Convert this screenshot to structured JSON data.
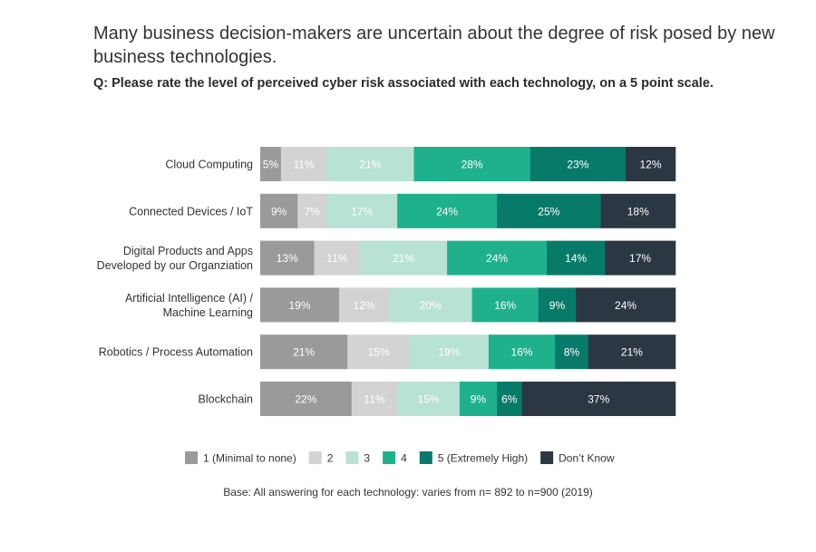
{
  "header": {
    "title": "Many business decision-makers are uncertain about the degree of risk posed by new business technologies.",
    "question": "Q: Please rate the level of perceived cyber risk associated with each technology, on a 5 point scale."
  },
  "footnote": "Base: All answering for each technology: varies from n= 892 to n=900 (2019)",
  "chart_data": {
    "type": "bar",
    "orientation": "horizontal",
    "stacked": true,
    "normalized": true,
    "categories": [
      [
        "Cloud Computing"
      ],
      [
        "Connected Devices / IoT"
      ],
      [
        "Digital Products and Apps",
        "Developed by our Organziation"
      ],
      [
        "Artificial Intelligence (AI) /",
        "Machine Learning"
      ],
      [
        "Robotics / Process Automation"
      ],
      [
        "Blockchain"
      ]
    ],
    "series": [
      {
        "name": "1 (Minimal to none)",
        "color": "#9a9a9a",
        "label_color": "#ffffff",
        "values": [
          5,
          9,
          13,
          19,
          21,
          22
        ]
      },
      {
        "name": "2",
        "color": "#d3d3d3",
        "label_color": "#ffffff",
        "values": [
          11,
          7,
          11,
          12,
          15,
          11
        ]
      },
      {
        "name": "3",
        "color": "#b8e2d2",
        "label_color": "#ffffff",
        "values": [
          21,
          17,
          21,
          20,
          19,
          15
        ]
      },
      {
        "name": "4",
        "color": "#1fb18c",
        "label_color": "#ffffff",
        "values": [
          28,
          24,
          24,
          16,
          16,
          9
        ]
      },
      {
        "name": "5 (Extremely High)",
        "color": "#087a6a",
        "label_color": "#ffffff",
        "values": [
          23,
          25,
          14,
          9,
          8,
          6
        ]
      },
      {
        "name": "Don’t Know",
        "color": "#2b3843",
        "label_color": "#ffffff",
        "values": [
          12,
          18,
          17,
          24,
          21,
          37
        ]
      }
    ],
    "value_suffix": "%",
    "legend_position": "bottom",
    "grid": false
  }
}
